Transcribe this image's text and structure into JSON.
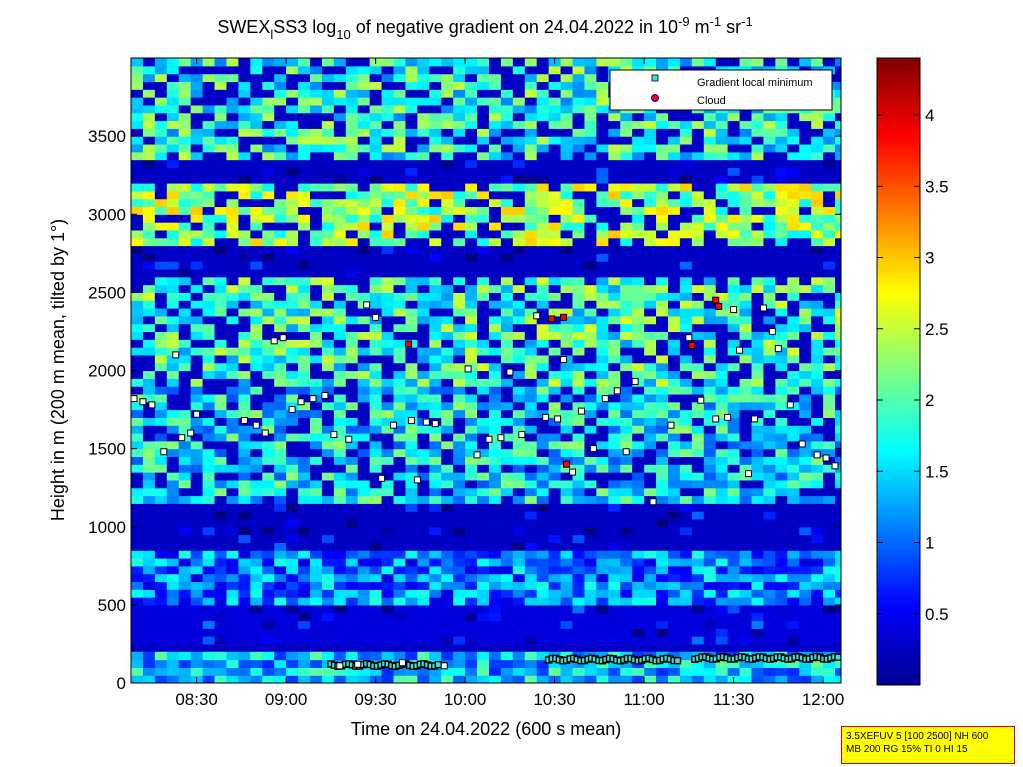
{
  "chart_data": {
    "type": "heatmap",
    "title": "SWEX_l SS3 log10 of negative gradient on 24.04.2022 in 10^-9 m^-1 sr^-1",
    "title_parts": {
      "prefix": "SWEX",
      "sub1": "l",
      "mid": "SS3 log",
      "sub2": "10",
      "rest": " of negative gradient on 24.04.2022 in 10",
      "sup1": "-9",
      "unit1": " m",
      "sup2": "-1",
      "unit2": " sr",
      "sup3": "-1"
    },
    "xlabel": "Time on 24.04.2022 (600 s mean)",
    "ylabel": "Height in m (200 m mean, tilted by 1°)",
    "x_ticks": [
      "08:30",
      "09:00",
      "09:30",
      "10:00",
      "10:30",
      "11:00",
      "11:30",
      "12:00"
    ],
    "x_tick_minutes": [
      510,
      540,
      570,
      600,
      630,
      660,
      690,
      720
    ],
    "x_range_minutes": [
      488,
      726
    ],
    "y_ticks": [
      "0",
      "500",
      "1000",
      "1500",
      "2000",
      "2500",
      "3000",
      "3500"
    ],
    "y_tick_values": [
      0,
      500,
      1000,
      1500,
      2000,
      2500,
      3000,
      3500
    ],
    "ylim": [
      0,
      4000
    ],
    "colorbar": {
      "ticks": [
        "0.5",
        "1",
        "1.5",
        "2",
        "2.5",
        "3",
        "3.5",
        "4"
      ],
      "tick_values": [
        0.5,
        1,
        1.5,
        2,
        2.5,
        3,
        3.5,
        4
      ],
      "range": [
        0,
        4.4
      ]
    },
    "legend": {
      "placement": "top-right",
      "entries": [
        {
          "label": "Gradient local minimum",
          "marker": "square",
          "color": "#40e0d0"
        },
        {
          "label": "Cloud",
          "marker": "circle",
          "color": "#ff0000"
        }
      ]
    },
    "layers": [
      {
        "name": "surface",
        "y": [
          0,
          200
        ],
        "value": 1.4
      },
      {
        "name": "low",
        "y": [
          250,
          500
        ],
        "value": 0.4
      },
      {
        "name": "hazy",
        "y": [
          500,
          850
        ],
        "value": 1.1
      },
      {
        "name": "gap",
        "y": [
          850,
          1150
        ],
        "value": 0.3
      },
      {
        "name": "band-1",
        "y": [
          1150,
          1900
        ],
        "value": 1.6
      },
      {
        "name": "band-2",
        "y": [
          1900,
          2600
        ],
        "value": 1.9
      },
      {
        "name": "gap-2",
        "y": [
          2600,
          2800
        ],
        "value": 0.3
      },
      {
        "name": "band-3",
        "y": [
          2800,
          3200
        ],
        "value": 2.3
      },
      {
        "name": "gap-3",
        "y": [
          3200,
          3350
        ],
        "value": 0.3
      },
      {
        "name": "band-4",
        "y": [
          3350,
          4000
        ],
        "value": 1.8
      }
    ],
    "gradient_minima": [
      {
        "t": 489,
        "h": 1820
      },
      {
        "t": 492,
        "h": 1800
      },
      {
        "t": 495,
        "h": 1780
      },
      {
        "t": 499,
        "h": 1480
      },
      {
        "t": 503,
        "h": 2100
      },
      {
        "t": 505,
        "h": 1570
      },
      {
        "t": 508,
        "h": 1600
      },
      {
        "t": 510,
        "h": 1720
      },
      {
        "t": 526,
        "h": 1680
      },
      {
        "t": 530,
        "h": 1650
      },
      {
        "t": 533,
        "h": 1600
      },
      {
        "t": 536,
        "h": 2190
      },
      {
        "t": 539,
        "h": 2210
      },
      {
        "t": 542,
        "h": 1750
      },
      {
        "t": 545,
        "h": 1800
      },
      {
        "t": 549,
        "h": 1820
      },
      {
        "t": 553,
        "h": 1840
      },
      {
        "t": 556,
        "h": 1590
      },
      {
        "t": 558,
        "h": 110
      },
      {
        "t": 561,
        "h": 1560
      },
      {
        "t": 564,
        "h": 120
      },
      {
        "t": 567,
        "h": 2420
      },
      {
        "t": 570,
        "h": 2340
      },
      {
        "t": 572,
        "h": 1310
      },
      {
        "t": 576,
        "h": 1650
      },
      {
        "t": 579,
        "h": 130
      },
      {
        "t": 582,
        "h": 1680
      },
      {
        "t": 584,
        "h": 1300
      },
      {
        "t": 587,
        "h": 1670
      },
      {
        "t": 590,
        "h": 1660
      },
      {
        "t": 593,
        "h": 110
      },
      {
        "t": 601,
        "h": 2010
      },
      {
        "t": 604,
        "h": 1460
      },
      {
        "t": 608,
        "h": 1560
      },
      {
        "t": 612,
        "h": 1570
      },
      {
        "t": 615,
        "h": 1990
      },
      {
        "t": 619,
        "h": 1590
      },
      {
        "t": 624,
        "h": 2350
      },
      {
        "t": 627,
        "h": 1700
      },
      {
        "t": 631,
        "h": 1690
      },
      {
        "t": 633,
        "h": 2070
      },
      {
        "t": 636,
        "h": 1350
      },
      {
        "t": 639,
        "h": 1740
      },
      {
        "t": 643,
        "h": 1500
      },
      {
        "t": 647,
        "h": 1820
      },
      {
        "t": 651,
        "h": 1870
      },
      {
        "t": 654,
        "h": 1480
      },
      {
        "t": 657,
        "h": 1930
      },
      {
        "t": 663,
        "h": 1160
      },
      {
        "t": 669,
        "h": 1650
      },
      {
        "t": 675,
        "h": 2210
      },
      {
        "t": 679,
        "h": 1810
      },
      {
        "t": 684,
        "h": 1690
      },
      {
        "t": 688,
        "h": 1700
      },
      {
        "t": 690,
        "h": 2390
      },
      {
        "t": 692,
        "h": 2130
      },
      {
        "t": 695,
        "h": 1340
      },
      {
        "t": 697,
        "h": 1690
      },
      {
        "t": 700,
        "h": 2400
      },
      {
        "t": 703,
        "h": 2250
      },
      {
        "t": 705,
        "h": 2140
      },
      {
        "t": 709,
        "h": 1780
      },
      {
        "t": 713,
        "h": 1530
      },
      {
        "t": 718,
        "h": 1460
      },
      {
        "t": 721,
        "h": 1440
      },
      {
        "t": 724,
        "h": 1390
      }
    ],
    "surface_trace": [
      {
        "t_start": 555,
        "t_end": 592,
        "h": 115
      },
      {
        "t_start": 628,
        "t_end": 672,
        "h": 150
      },
      {
        "t_start": 677,
        "t_end": 726,
        "h": 160
      }
    ],
    "clouds": [
      {
        "t": 581,
        "h": 2170
      },
      {
        "t": 629,
        "h": 2330
      },
      {
        "t": 633,
        "h": 2340
      },
      {
        "t": 634,
        "h": 1400
      },
      {
        "t": 676,
        "h": 2160
      },
      {
        "t": 684,
        "h": 2450
      },
      {
        "t": 685,
        "h": 2410
      }
    ]
  },
  "info_box": {
    "line1": "3.5XEFUV 5 [100 2500] NH 600",
    "line2": "MB 200 RG 15% TI 0 HI 15"
  }
}
